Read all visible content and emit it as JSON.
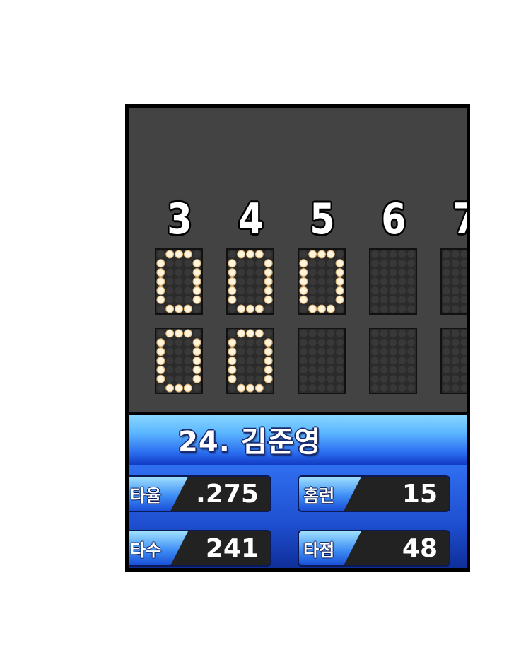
{
  "scoreboard": {
    "innings": [
      "3",
      "4",
      "5",
      "6",
      "7"
    ],
    "top_row": [
      "0",
      "0",
      "0",
      "",
      ""
    ],
    "bottom_row": [
      "0",
      "0",
      "",
      "",
      ""
    ],
    "colors": {
      "board": "#434343",
      "lamp_on": "#fff4dc",
      "lamp_off": "#383838"
    }
  },
  "player": {
    "name": "24. 김준영"
  },
  "stats": [
    {
      "label": "타율",
      "value": ".275"
    },
    {
      "label": "홈런",
      "value": "15"
    },
    {
      "label": "타수",
      "value": "241"
    },
    {
      "label": "타점",
      "value": "48"
    }
  ]
}
